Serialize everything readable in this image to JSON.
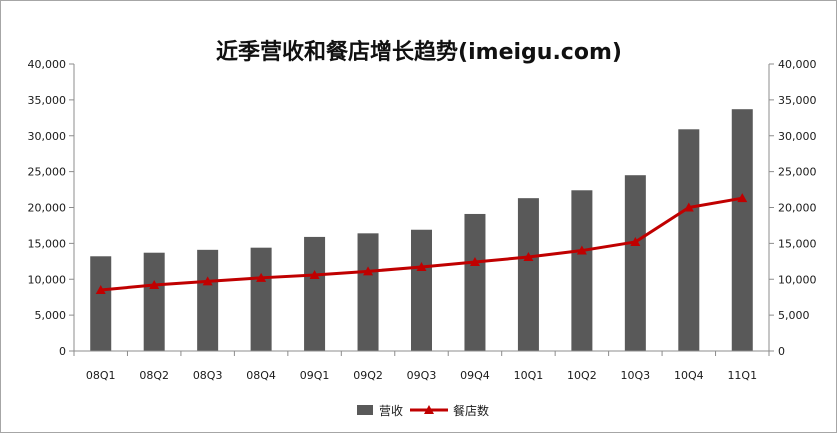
{
  "chart_data": {
    "type": "bar",
    "title": "近季营收和餐店增长趋势(imeigu.com)",
    "categories": [
      "08Q1",
      "08Q2",
      "08Q3",
      "08Q4",
      "09Q1",
      "09Q2",
      "09Q3",
      "09Q4",
      "10Q1",
      "10Q2",
      "10Q3",
      "10Q4",
      "11Q1"
    ],
    "series": [
      {
        "name": "营收",
        "type": "bar",
        "axis": "left",
        "color": "#595959",
        "values": [
          13200,
          13700,
          14100,
          14400,
          15900,
          16400,
          16900,
          19100,
          21300,
          22400,
          24500,
          30900,
          33700
        ]
      },
      {
        "name": "餐店数",
        "type": "line",
        "axis": "right",
        "color": "#c00000",
        "marker": "triangle",
        "values": [
          8500,
          9200,
          9700,
          10200,
          10600,
          11100,
          11700,
          12400,
          13100,
          14000,
          15200,
          20000,
          21300
        ]
      }
    ],
    "ylim": [
      0,
      40000
    ],
    "y2lim": [
      0,
      40000
    ],
    "yticks": [
      "0",
      "5,000",
      "10,000",
      "15,000",
      "20,000",
      "25,000",
      "30,000",
      "35,000",
      "40,000"
    ],
    "y2ticks": [
      "0",
      "5,000",
      "10,000",
      "15,000",
      "20,000",
      "25,000",
      "30,000",
      "35,000",
      "40,000"
    ],
    "legend_position": "bottom",
    "grid": false
  }
}
